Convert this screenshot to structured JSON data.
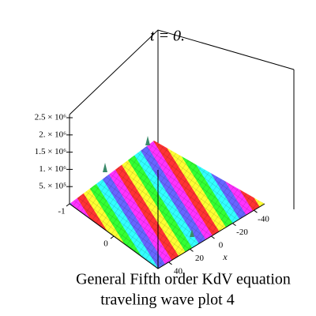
{
  "chart_data": {
    "type": "surface",
    "title": "t = 0.",
    "caption": [
      "General Fifth order  KdV  equation",
      "traveling wave plot 4"
    ],
    "xlabel": "x",
    "xlim": [
      -50,
      50
    ],
    "xticks": [
      -40,
      -20,
      0,
      20,
      40
    ],
    "ylim": [
      -1,
      1
    ],
    "yticks": [
      -1,
      0
    ],
    "zlim": [
      0,
      2500000
    ],
    "zticks": [
      {
        "value": 500000,
        "label": "5. × 10⁵"
      },
      {
        "value": 1000000,
        "label": "1. × 10⁶"
      },
      {
        "value": 1500000,
        "label": "1.5 × 10⁶"
      },
      {
        "value": 2000000,
        "label": "2. × 10⁶"
      },
      {
        "value": 2500000,
        "label": "2.5 × 10⁶"
      }
    ]
  }
}
